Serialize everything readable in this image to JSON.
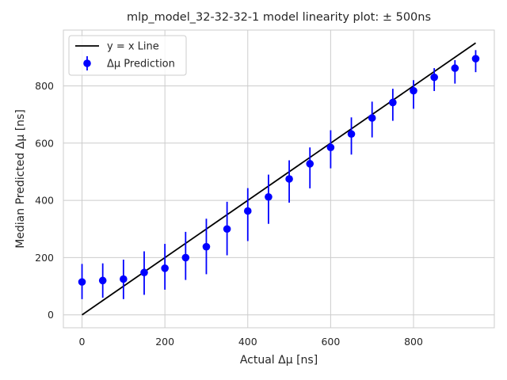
{
  "chart_data": {
    "type": "scatter",
    "title": "mlp_model_32-32-32-1 model linearity plot: ± 500ns",
    "xlabel": "Actual Δμ [ns]",
    "ylabel": "Median Predicted Δμ [ns]",
    "xlim": [
      -45,
      995
    ],
    "ylim": [
      -45,
      995
    ],
    "xticks": [
      0,
      200,
      400,
      600,
      800
    ],
    "yticks": [
      0,
      200,
      400,
      600,
      800
    ],
    "grid": true,
    "legend_position": "top-left",
    "colors": {
      "line": "#000000",
      "points": "#0000ff",
      "grid": "#cccccc",
      "axes": "#cccccc"
    },
    "reference_line": {
      "name": "y = x Line",
      "x": [
        0,
        950
      ],
      "y": [
        0,
        950
      ]
    },
    "series": [
      {
        "name": "Δμ Prediction",
        "x": [
          0,
          50,
          100,
          150,
          200,
          250,
          300,
          350,
          400,
          450,
          500,
          550,
          600,
          650,
          700,
          750,
          800,
          850,
          900,
          950
        ],
        "y": [
          115,
          120,
          125,
          148,
          163,
          200,
          238,
          300,
          363,
          412,
          475,
          528,
          585,
          632,
          688,
          742,
          783,
          830,
          862,
          895
        ],
        "yerr_low": [
          55,
          60,
          55,
          70,
          88,
          122,
          142,
          208,
          258,
          318,
          392,
          442,
          512,
          560,
          620,
          678,
          720,
          782,
          808,
          848
        ],
        "yerr_high": [
          178,
          180,
          193,
          222,
          248,
          290,
          336,
          395,
          443,
          490,
          540,
          585,
          645,
          690,
          745,
          790,
          820,
          862,
          890,
          925
        ]
      }
    ]
  }
}
